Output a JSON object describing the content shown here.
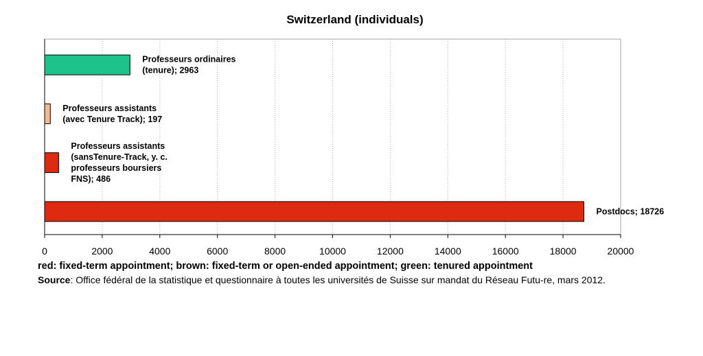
{
  "chart_data": {
    "type": "bar",
    "orientation": "horizontal",
    "title": "Switzerland (individuals)",
    "xlabel": "",
    "ylabel": "",
    "xlim": [
      0,
      20000
    ],
    "xticks": [
      0,
      2000,
      4000,
      6000,
      8000,
      10000,
      12000,
      14000,
      16000,
      18000,
      20000
    ],
    "grid": "vertical dotted",
    "legend": "none",
    "categories": [
      "Professeurs ordinaires (tenure)",
      "Professeurs assistants (avec Tenure Track)",
      "Professeurs assistants (sansTenure-Track, y. c. professeurs boursiers FNS)",
      "Postdocs"
    ],
    "values": [
      2963,
      197,
      486,
      18726
    ],
    "bar_colors": [
      "#1ec38b",
      "#f5b88c",
      "#dd2a10",
      "#dd2a10"
    ],
    "data_labels": [
      [
        "Professeurs ordinaires",
        "(tenure); 2963"
      ],
      [
        "Professeurs assistants",
        "(avec Tenure Track); 197"
      ],
      [
        "Professeurs assistants",
        "(sansTenure-Track, y. c.",
        "professeurs boursiers",
        "FNS); 486"
      ],
      [
        "Postdocs; 18726"
      ]
    ]
  },
  "caption": {
    "legend_text": "red: fixed-term appointment; brown: fixed-term or open-ended appointment; green: tenured appointment",
    "source_label": "Source",
    "source_text": ": Office fédéral de la statistique et questionnaire à toutes les universités de Suisse sur mandat du Réseau Futu-re, mars 2012."
  }
}
